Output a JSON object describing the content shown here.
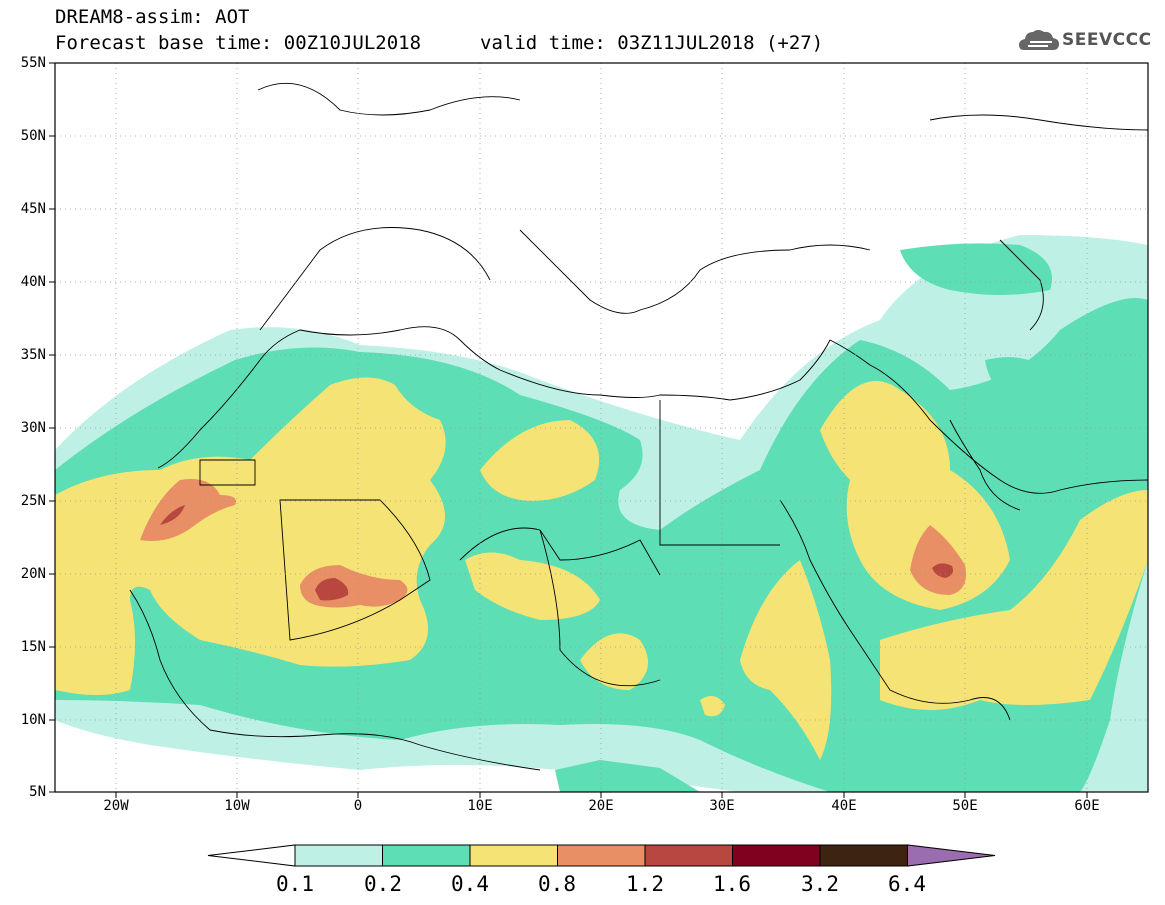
{
  "header": {
    "title": "DREAM8-assim: AOT",
    "base_time": "Forecast base time: 00Z10JUL2018",
    "valid_time": "valid time: 03Z11JUL2018 (+27)",
    "logo_text": "SEEVCCC"
  },
  "map": {
    "variable": "AOT",
    "lat_range": [
      5,
      55
    ],
    "lon_range": [
      -25,
      65
    ],
    "lat_labels": [
      "55N",
      "50N",
      "45N",
      "40N",
      "35N",
      "30N",
      "25N",
      "20N",
      "15N",
      "10N",
      "5N"
    ],
    "lon_labels": [
      "20W",
      "10W",
      "0",
      "10E",
      "20E",
      "30E",
      "40E",
      "50E",
      "60E"
    ],
    "gridlines": true
  },
  "colorbar": {
    "levels": [
      "0.1",
      "0.2",
      "0.4",
      "0.8",
      "1.2",
      "1.6",
      "3.2",
      "6.4"
    ],
    "colors": [
      "#ffffff",
      "#bff0e6",
      "#5ddeb4",
      "#f5e475",
      "#e88f66",
      "#b8483f",
      "#800020",
      "#3d2410",
      "#9a6cb0"
    ]
  }
}
